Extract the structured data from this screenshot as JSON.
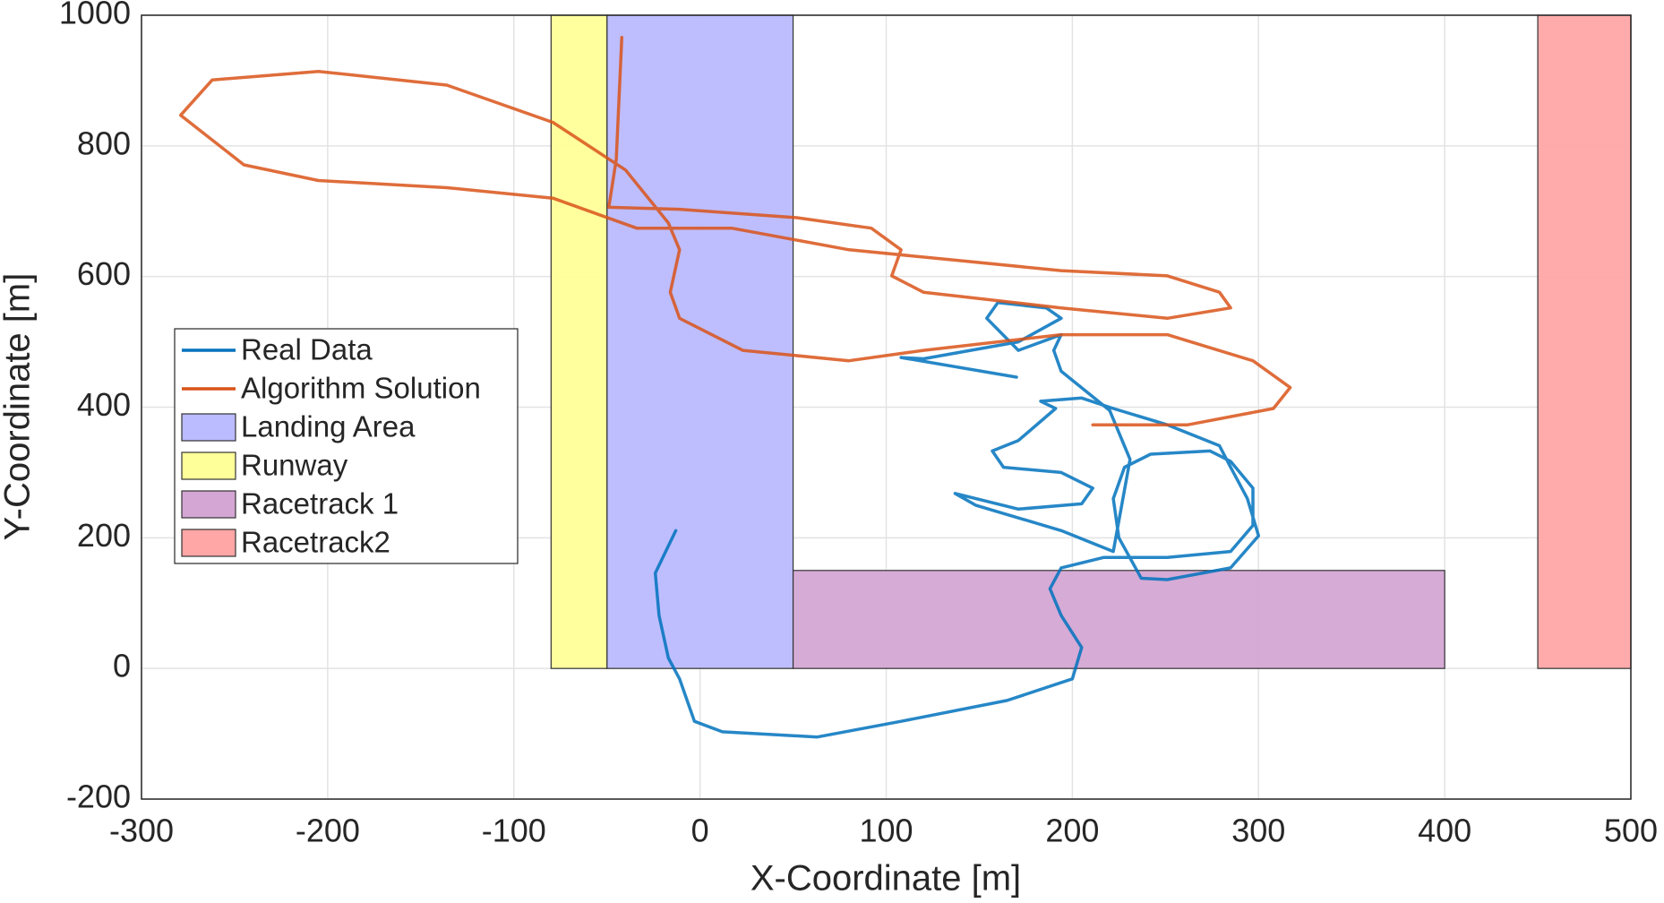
{
  "chart_data": {
    "type": "line",
    "xlabel": "X-Coordinate [m]",
    "ylabel": "Y-Coordinate [m]",
    "xlim": [
      -300,
      500
    ],
    "ylim": [
      -200,
      1000
    ],
    "xticks": [
      -300,
      -200,
      -100,
      0,
      100,
      200,
      300,
      400,
      500
    ],
    "yticks": [
      -200,
      0,
      200,
      400,
      600,
      800,
      1000
    ],
    "grid": true,
    "legend": "upper left",
    "regions": [
      {
        "name": "Landing Area",
        "color": "#bbbbff",
        "x": [
          -50,
          50
        ],
        "y": [
          0,
          1000
        ]
      },
      {
        "name": "Runway",
        "color": "#ffff99",
        "x": [
          -80,
          -50
        ],
        "y": [
          0,
          1000
        ]
      },
      {
        "name": "Racetrack 1",
        "color": "#d4a6d4",
        "x": [
          50,
          400
        ],
        "y": [
          0,
          150
        ]
      },
      {
        "name": "Racetrack2",
        "color": "#ffa6a6",
        "x": [
          450,
          500
        ],
        "y": [
          0,
          1000
        ]
      }
    ],
    "series": [
      {
        "name": "Real Data",
        "color": "#0072bd",
        "x": [
          -13,
          -24,
          -22,
          -17,
          -11,
          -3,
          12,
          63,
          108,
          165,
          200,
          205,
          194,
          188,
          194,
          217,
          251,
          285,
          297,
          297,
          285,
          274,
          242,
          228,
          222,
          225,
          237,
          251,
          285,
          300,
          294,
          285,
          279,
          251,
          222,
          205,
          183,
          191,
          171,
          157,
          163,
          194,
          211,
          205,
          171,
          137,
          148,
          194,
          222,
          231,
          220,
          194,
          190,
          194,
          171,
          154,
          160,
          186,
          194,
          171,
          120,
          108,
          170
        ],
        "y": [
          211,
          146,
          81,
          16,
          -16,
          -81,
          -97,
          -105,
          -81,
          -49,
          -16,
          32,
          81,
          122,
          154,
          170,
          170,
          179,
          219,
          276,
          317,
          333,
          328,
          308,
          260,
          200,
          138,
          136,
          154,
          203,
          260,
          308,
          341,
          373,
          398,
          414,
          409,
          398,
          349,
          333,
          308,
          300,
          276,
          252,
          244,
          268,
          250,
          211,
          179,
          320,
          395,
          455,
          487,
          511,
          487,
          536,
          560,
          552,
          536,
          500,
          474,
          476,
          446
        ]
      },
      {
        "name": "Algorithm Solution",
        "color": "#d95319",
        "x": [
          -42,
          -45,
          -49,
          -11,
          52,
          92,
          108,
          103,
          120,
          194,
          251,
          285,
          279,
          251,
          194,
          137,
          80,
          17,
          -34,
          -79,
          -136,
          -205,
          -245,
          -279,
          -262,
          -205,
          -136,
          -79,
          -40,
          -17,
          -11,
          -16,
          -11,
          23,
          80,
          120,
          194,
          251,
          297,
          317,
          308,
          262,
          211
        ],
        "y": [
          966,
          779,
          706,
          703,
          690,
          674,
          641,
          601,
          576,
          552,
          536,
          552,
          576,
          601,
          609,
          625,
          641,
          674,
          674,
          720,
          736,
          747,
          771,
          847,
          901,
          914,
          893,
          836,
          763,
          682,
          641,
          576,
          536,
          487,
          471,
          487,
          511,
          511,
          471,
          430,
          398,
          373,
          373
        ]
      }
    ]
  }
}
